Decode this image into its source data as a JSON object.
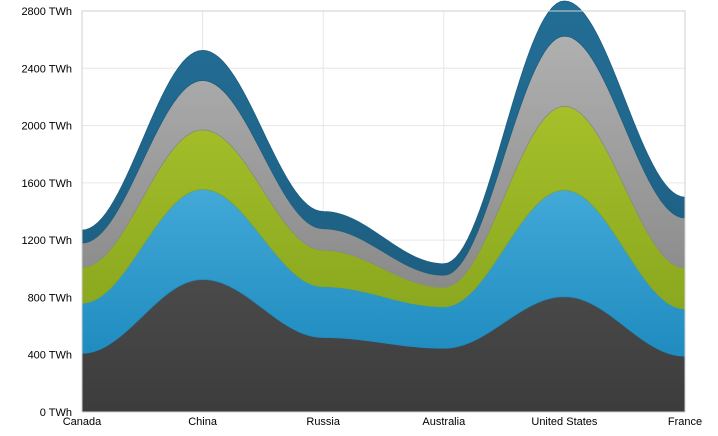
{
  "chart_data": {
    "type": "area",
    "stacked": true,
    "smooth": true,
    "title": "",
    "xlabel": "",
    "ylabel": "",
    "categories": [
      "Canada",
      "China",
      "Russia",
      "Australia",
      "United States",
      "France"
    ],
    "ylim": [
      0,
      2800
    ],
    "y_ticks": [
      0,
      400,
      800,
      1200,
      1600,
      2000,
      2400,
      2800
    ],
    "y_tick_suffix": " TWh",
    "grid": true,
    "legend": "none",
    "series": [
      {
        "values": [
          410,
          925,
          520,
          445,
          805,
          390
        ],
        "color": "#3c3c3c",
        "color_light": "#4a4a4a"
      },
      {
        "values": [
          350,
          630,
          355,
          290,
          745,
          330
        ],
        "color": "#1f8bbf",
        "color_light": "#42a9d8"
      },
      {
        "values": [
          250,
          415,
          255,
          135,
          585,
          285
        ],
        "color": "#8aa81f",
        "color_light": "#a6c02a"
      },
      {
        "values": [
          170,
          345,
          150,
          85,
          490,
          350
        ],
        "color": "#8a8a8a",
        "color_light": "#b0b0b0"
      },
      {
        "values": [
          90,
          210,
          120,
          80,
          245,
          145
        ],
        "color": "#1d5f82",
        "color_light": "#236e96"
      }
    ]
  }
}
